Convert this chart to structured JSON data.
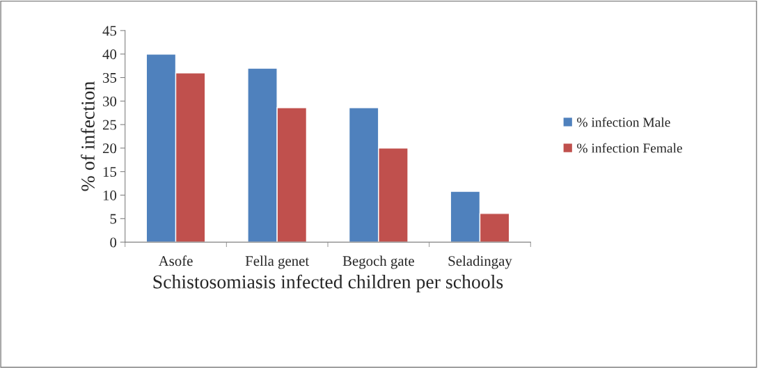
{
  "chart_data": {
    "type": "bar",
    "xlabel": "Schistosomiasis infected children per schools",
    "ylabel": "% of infection",
    "categories": [
      "Asofe",
      "Fella genet",
      "Begoch gate",
      "Seladingay"
    ],
    "series": [
      {
        "name": "% infection Male",
        "color": "#4f81bd",
        "values": [
          40,
          37,
          28.6,
          10.8
        ]
      },
      {
        "name": "% infection Female",
        "color": "#c0504d",
        "values": [
          36,
          28.6,
          20,
          6.1
        ]
      }
    ],
    "ylim": [
      0,
      45
    ],
    "yticks": [
      0,
      5,
      10,
      15,
      20,
      25,
      30,
      35,
      40,
      45
    ],
    "grid": false,
    "legend": "right"
  }
}
